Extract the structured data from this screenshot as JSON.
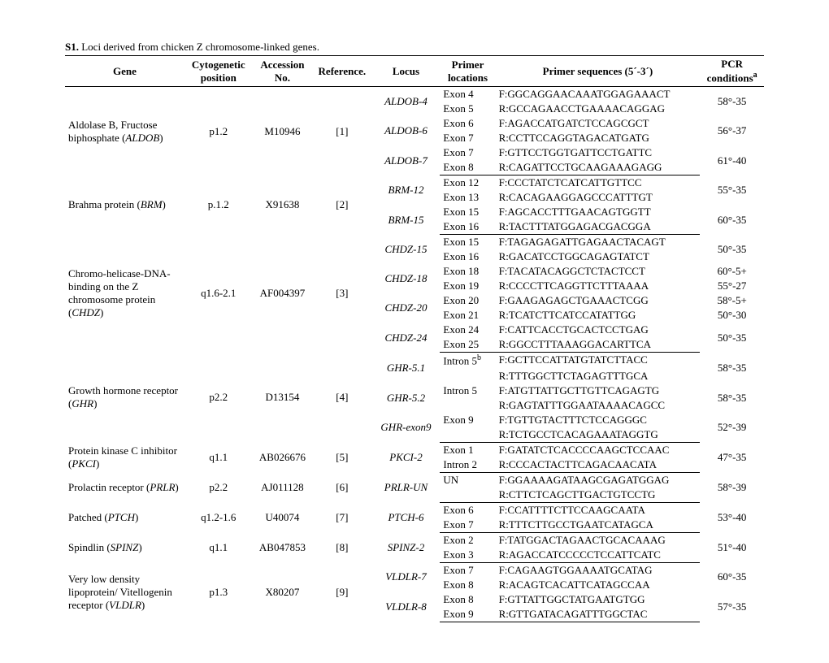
{
  "title_prefix": "S1.",
  "title_rest": " Loci derived from chicken  Z chromosome-linked genes.",
  "headers": {
    "gene": "Gene",
    "cyto": "Cytogenetic position",
    "acc": "Accession No.",
    "ref": "Reference.",
    "locus": "Locus",
    "primer_loc": "Primer locations",
    "seq": "Primer sequences (5´-3´)",
    "pcr": "PCR conditions",
    "pcr_sup": "a"
  },
  "groups": [
    {
      "gene_html": "Aldolase B, Fructose biphosphate (<i>ALDOB</i>)",
      "cyto": "p1.2",
      "acc": "M10946",
      "ref": "[1]",
      "loci": [
        {
          "locus": "ALDOB-4",
          "rows": [
            {
              "loc": "Exon 4",
              "seq": "F:GGCAGGAACAAATGGAGAAACT"
            },
            {
              "loc": "Exon 5",
              "seq": "R:GCCAGAACCTGAAAACAGGAG"
            }
          ],
          "pcr": "58°-35"
        },
        {
          "locus": "ALDOB-6",
          "rows": [
            {
              "loc": "Exon 6",
              "seq": "F:AGACCATGATCTCCAGCGCT"
            },
            {
              "loc": "Exon 7",
              "seq": "R:CCTTCCAGGTAGACATGATG"
            }
          ],
          "pcr": "56°-37"
        },
        {
          "locus": "ALDOB-7",
          "rows": [
            {
              "loc": "Exon 7",
              "seq": "F:GTTCCTGGTGATTCCTGATTC"
            },
            {
              "loc": "Exon 8",
              "seq": "R:CAGATTCCTGCAAGAAAGAGG"
            }
          ],
          "pcr": "61°-40"
        }
      ]
    },
    {
      "gene_html": "Brahma protein (<i>BRM</i>)",
      "cyto": "p.1.2",
      "acc": "X91638",
      "ref": "[2]",
      "loci": [
        {
          "locus": "BRM-12",
          "rows": [
            {
              "loc": "Exon 12",
              "seq": "F:CCCTATCTCATCATTGTTCC"
            },
            {
              "loc": "Exon 13",
              "seq": "R:CACAGAAGGAGCCCATTTGT"
            }
          ],
          "pcr": "55°-35"
        },
        {
          "locus": "BRM-15",
          "rows": [
            {
              "loc": "Exon 15",
              "seq": "F:AGCACCTTTGAACAGTGGTT"
            },
            {
              "loc": "Exon 16",
              "seq": "R:TACTTTATGGAGACGACGGA"
            }
          ],
          "pcr": "60°-35"
        }
      ]
    },
    {
      "gene_html": "Chromo-helicase-DNA-binding on the Z chromosome protein (<i>CHDZ</i>)",
      "cyto": "q1.6-2.1",
      "acc": "AF004397",
      "ref": "[3]",
      "loci": [
        {
          "locus": "CHDZ-15",
          "rows": [
            {
              "loc": "Exon 15",
              "seq": "F:TAGAGAGATTGAGAACTACAGT"
            },
            {
              "loc": "Exon 16",
              "seq": "R:GACATCCTGGCAGAGTATCT"
            }
          ],
          "pcr": "50°-35"
        },
        {
          "locus": "CHDZ-18",
          "rows": [
            {
              "loc": "Exon 18",
              "seq": "F:TACATACAGGCTCTACTCCT"
            },
            {
              "loc": "Exon 19",
              "seq": "R:CCCCTTCAGGTTCTTTAAAA"
            }
          ],
          "pcr": "60°-5+\n55°-27",
          "pcr_multiline": [
            "60°-5+",
            "55°-27"
          ]
        },
        {
          "locus": "CHDZ-20",
          "rows": [
            {
              "loc": "Exon 20",
              "seq": "F:GAAGAGAGCTGAAACTCGG"
            },
            {
              "loc": "Exon 21",
              "seq": "R:TCATCTTCATCCATATTGG"
            }
          ],
          "pcr_multiline": [
            "58°-5+",
            "50°-30"
          ]
        },
        {
          "locus": "CHDZ-24",
          "rows": [
            {
              "loc": "Exon 24",
              "seq": "F:CATTCACCTGCACTCCTGAG"
            },
            {
              "loc": "Exon 25",
              "seq": "R:GGCCTTTAAAGGACARTTCA"
            }
          ],
          "pcr": "50°-35"
        }
      ]
    },
    {
      "gene_html": "Growth hormone receptor (<i>GHR</i>)",
      "cyto": "p2.2",
      "acc": "D13154",
      "ref": "[4]",
      "loci": [
        {
          "locus": "GHR-5.1",
          "rows": [
            {
              "loc": "Intron 5",
              "loc_sup": "b",
              "seq": "F:GCTTCCATTATGTATCTTACC"
            },
            {
              "loc": "",
              "seq": "R:TTTGGCTTCTAGAGTTTGCA"
            }
          ],
          "pcr": "58°-35"
        },
        {
          "locus": "GHR-5.2",
          "rows": [
            {
              "loc": "Intron 5",
              "seq": "F:ATGTTATTGCTTGTTCAGAGTG"
            },
            {
              "loc": "",
              "seq": "R:GAGTATTTGGAATAAAACAGCC"
            }
          ],
          "pcr": "58°-35"
        },
        {
          "locus": "GHR-exon9",
          "rows": [
            {
              "loc": "Exon 9",
              "seq": "F:TGTTGTACTTTCTCCAGGGC"
            },
            {
              "loc": "",
              "seq": "R:TCTGCCTCACAGAAATAGGTG"
            }
          ],
          "pcr": "52°-39"
        }
      ]
    },
    {
      "gene_html": "Protein kinase C inhibitor (<i>PKCI</i>)",
      "cyto": "q1.1",
      "acc": "AB026676",
      "ref": "[5]",
      "loci": [
        {
          "locus": "PKCI-2",
          "rows": [
            {
              "loc": "Exon 1",
              "seq": "F:GATATCTCACCCCAAGCTCCAAC"
            },
            {
              "loc": "Intron 2",
              "seq": "R:CCCACTACTTCAGACAACATA"
            }
          ],
          "pcr": "47°-35"
        }
      ]
    },
    {
      "gene_html": "Prolactin receptor (<i>PRLR</i>)",
      "cyto": "p2.2",
      "acc": "AJ011128",
      "ref": "[6]",
      "loci": [
        {
          "locus": "PRLR-UN",
          "rows": [
            {
              "loc": "UN",
              "seq": "F:GGAAAAGATAAGCGAGATGGAG"
            },
            {
              "loc": "",
              "seq": "R:CTTCTCAGCTTGACTGTCCTG"
            }
          ],
          "pcr": "58°-39"
        }
      ]
    },
    {
      "gene_html": "Patched (<i>PTCH</i>)",
      "cyto": "q1.2-1.6",
      "acc": "U40074",
      "ref": "[7]",
      "loci": [
        {
          "locus": "PTCH-6",
          "rows": [
            {
              "loc": "Exon 6",
              "seq": "F:CCATTTTCTTCCAAGCAATA"
            },
            {
              "loc": "Exon 7",
              "seq": "R:TTTCTTGCCTGAATCATAGCA"
            }
          ],
          "pcr": "53°-40"
        }
      ]
    },
    {
      "gene_html": "Spindlin (<i>SPINZ</i>)",
      "cyto": "q1.1",
      "acc": "AB047853",
      "ref": "[8]",
      "loci": [
        {
          "locus": "SPINZ-2",
          "rows": [
            {
              "loc": "Exon 2",
              "seq": "F:TATGGACTAGAACTGCACAAAG"
            },
            {
              "loc": "Exon 3",
              "seq": "R:AGACCATCCCCCTCCATTCATC"
            }
          ],
          "pcr": "51°-40"
        }
      ]
    },
    {
      "gene_html": "Very low density lipoprotein/ Vitellogenin receptor (<i>VLDLR</i>)",
      "cyto": "p1.3",
      "acc": "X80207",
      "ref": "[9]",
      "loci": [
        {
          "locus": "VLDLR-7",
          "rows": [
            {
              "loc": "Exon 7",
              "seq": "F:CAGAAGTGGAAAATGCATAG"
            },
            {
              "loc": "Exon 8",
              "seq": "R:ACAGTCACATTCATAGCCAA"
            }
          ],
          "pcr": "60°-35"
        },
        {
          "locus": "VLDLR-8",
          "rows": [
            {
              "loc": "Exon 8",
              "seq": "F:GTTATTGGCTATGAATGTGG"
            },
            {
              "loc": "Exon 9",
              "seq": "R:GTTGATACAGATTTGGCTAC"
            }
          ],
          "pcr": "57°-35"
        }
      ]
    }
  ]
}
